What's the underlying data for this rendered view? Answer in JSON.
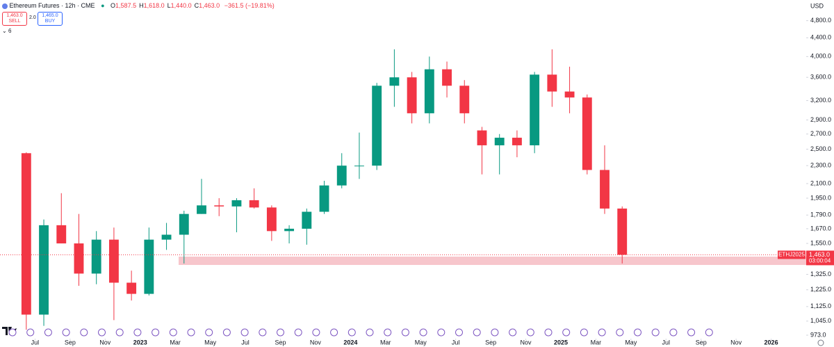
{
  "header": {
    "symbol": "Ethereum Futures · 12h · CME",
    "ohlc": [
      {
        "key": "O",
        "value": "1,587.5"
      },
      {
        "key": "H",
        "value": "1,618.0"
      },
      {
        "key": "L",
        "value": "1,440.0"
      },
      {
        "key": "C",
        "value": "1,463.0"
      }
    ],
    "change": "−361.5 (−19.81%)",
    "sell_price": "1,463.0",
    "sell": "SELL",
    "spread": "2.0",
    "buy_price": "1,465.0",
    "buy": "BUY",
    "indicator_count": "6"
  },
  "chart_data": {
    "type": "candlestick",
    "currency": "USD",
    "log_scale": true,
    "grid": false,
    "up_color": "#089981",
    "down_color": "#f23645",
    "x": [
      "2022-06",
      "2022-07",
      "2022-08",
      "2022-09",
      "2022-10",
      "2022-11",
      "2022-12",
      "2023-01",
      "2023-02",
      "2023-03",
      "2023-04",
      "2023-05",
      "2023-06",
      "2023-07",
      "2023-08",
      "2023-09",
      "2023-10",
      "2023-11",
      "2023-12",
      "2024-01",
      "2024-02",
      "2024-03",
      "2024-04",
      "2024-05",
      "2024-06",
      "2024-07",
      "2024-08",
      "2024-09",
      "2024-10",
      "2024-11",
      "2024-12",
      "2025-01",
      "2025-02",
      "2025-03",
      "2025-04"
    ],
    "open": [
      2450,
      1080,
      1700,
      1550,
      1330,
      1580,
      1270,
      1200,
      1580,
      1620,
      1800,
      1880,
      1870,
      1930,
      1860,
      1650,
      1670,
      1820,
      2080,
      2300,
      2300,
      3450,
      3600,
      3000,
      3750,
      3450,
      2750,
      2550,
      2650,
      2550,
      3650,
      3350,
      3250,
      2250,
      1850
    ],
    "high": [
      2460,
      1750,
      2000,
      1800,
      1650,
      1680,
      1350,
      1680,
      1720,
      1830,
      2150,
      1950,
      1950,
      2050,
      1880,
      1700,
      1850,
      2130,
      2450,
      2720,
      3500,
      4150,
      3700,
      4000,
      3900,
      3550,
      2800,
      2700,
      2750,
      3700,
      4150,
      3800,
      3300,
      2550,
      1870
    ],
    "low": [
      1000,
      1020,
      1550,
      1250,
      1260,
      1050,
      1160,
      1190,
      1500,
      1400,
      1800,
      1780,
      1640,
      1850,
      1570,
      1550,
      1540,
      1800,
      2050,
      2150,
      2250,
      3100,
      2850,
      2850,
      3250,
      2850,
      2200,
      2200,
      2400,
      2450,
      3100,
      3000,
      2200,
      1800,
      1400
    ],
    "close": [
      1080,
      1700,
      1550,
      1330,
      1580,
      1270,
      1200,
      1580,
      1620,
      1800,
      1880,
      1870,
      1930,
      1860,
      1650,
      1670,
      1820,
      2080,
      2300,
      2300,
      3450,
      3600,
      3000,
      3750,
      3450,
      3000,
      2550,
      2650,
      2550,
      3650,
      3350,
      3250,
      2250,
      1850,
      1463
    ],
    "xlim": [
      "2022-05",
      "2026-03"
    ],
    "xticks": [
      {
        "value": "2022-07",
        "label": "Jul"
      },
      {
        "value": "2022-09",
        "label": "Sep"
      },
      {
        "value": "2022-11",
        "label": "Nov"
      },
      {
        "value": "2023-01",
        "label": "2023"
      },
      {
        "value": "2023-03",
        "label": "Mar"
      },
      {
        "value": "2023-05",
        "label": "May"
      },
      {
        "value": "2023-07",
        "label": "Jul"
      },
      {
        "value": "2023-09",
        "label": "Sep"
      },
      {
        "value": "2023-11",
        "label": "Nov"
      },
      {
        "value": "2024-01",
        "label": "2024"
      },
      {
        "value": "2024-03",
        "label": "Mar"
      },
      {
        "value": "2024-05",
        "label": "May"
      },
      {
        "value": "2024-07",
        "label": "Jul"
      },
      {
        "value": "2024-09",
        "label": "Sep"
      },
      {
        "value": "2024-11",
        "label": "Nov"
      },
      {
        "value": "2025-01",
        "label": "2025"
      },
      {
        "value": "2025-03",
        "label": "Mar"
      },
      {
        "value": "2025-05",
        "label": "May"
      },
      {
        "value": "2025-07",
        "label": "Jul"
      },
      {
        "value": "2025-09",
        "label": "Sep"
      },
      {
        "value": "2025-11",
        "label": "Nov"
      },
      {
        "value": "2026-01",
        "label": "2026"
      }
    ],
    "ylim": [
      956,
      5330
    ],
    "yticks": [
      {
        "value": 4800,
        "label": "4,800.0"
      },
      {
        "value": 4400,
        "label": "4,400.0"
      },
      {
        "value": 4000,
        "label": "4,000.0"
      },
      {
        "value": 3600,
        "label": "3,600.0"
      },
      {
        "value": 3200,
        "label": "3,200.0"
      },
      {
        "value": 2900,
        "label": "2,900.0"
      },
      {
        "value": 2700,
        "label": "2,700.0"
      },
      {
        "value": 2500,
        "label": "2,500.0"
      },
      {
        "value": 2300,
        "label": "2,300.0"
      },
      {
        "value": 2100,
        "label": "2,100.0"
      },
      {
        "value": 1950,
        "label": "1,950.0"
      },
      {
        "value": 1790,
        "label": "1,790.0"
      },
      {
        "value": 1670,
        "label": "1,670.0"
      },
      {
        "value": 1550,
        "label": "1,550.0"
      },
      {
        "value": 1325,
        "label": "1,325.0"
      },
      {
        "value": 1225,
        "label": "1,225.0"
      },
      {
        "value": 1125,
        "label": "1,125.0"
      },
      {
        "value": 1045,
        "label": "1,045.0"
      },
      {
        "value": 973,
        "label": "973.0"
      }
    ],
    "last_price": {
      "value": 1463,
      "label": "1,463.0"
    },
    "symbol_tag": "ETHJ2025",
    "countdown": "03:00:04"
  }
}
